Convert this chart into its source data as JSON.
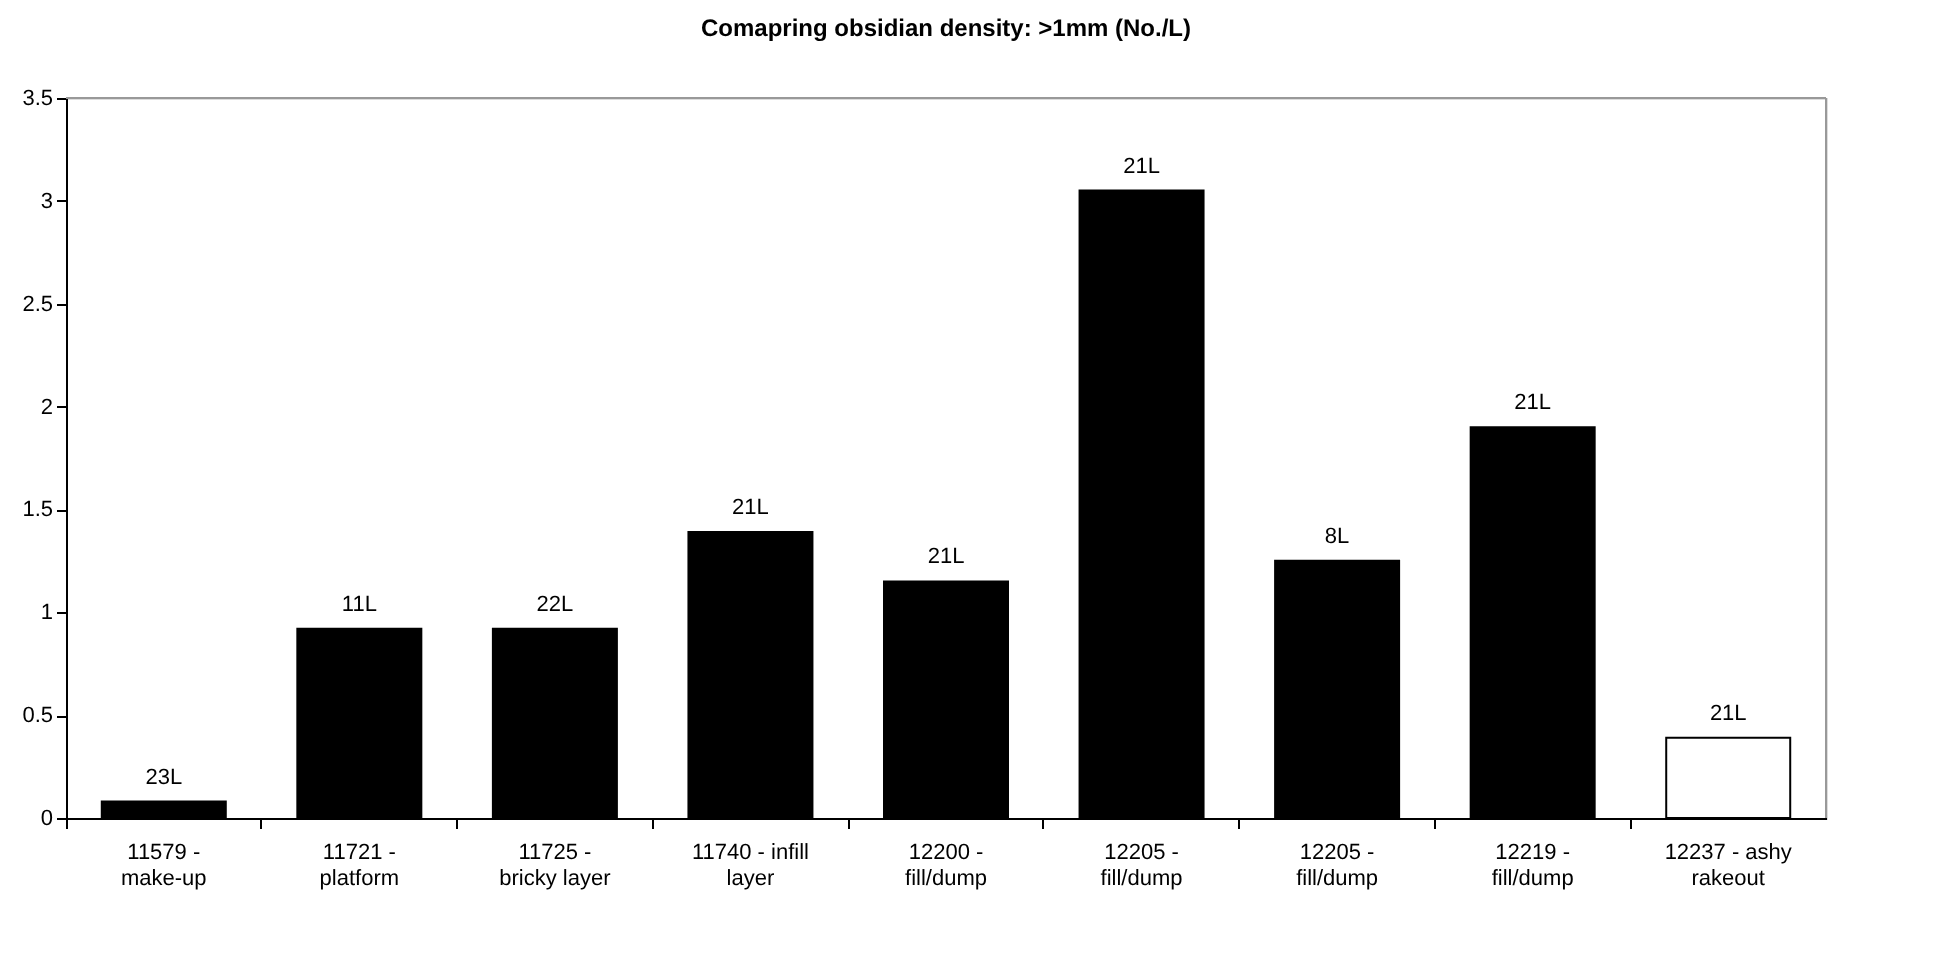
{
  "chart_data": {
    "type": "bar",
    "title": "Comapring obsidian density: >1mm (No./L)",
    "categories": [
      "11579 -\nmake-up",
      "11721 -\nplatform",
      "11725 -\nbricky layer",
      "11740 - infill\nlayer",
      "12200 -\nfill/dump",
      "12205 -\nfill/dump",
      "12205 -\nfill/dump",
      "12219 -\nfill/dump",
      "12237 - ashy\nrakeout"
    ],
    "values": [
      0.08,
      0.92,
      0.92,
      1.39,
      1.15,
      3.05,
      1.25,
      1.9,
      0.39
    ],
    "colors": [
      "#000000",
      "#000000",
      "#000000",
      "#000000",
      "#000000",
      "#000000",
      "#000000",
      "#000000",
      "#ffffff"
    ],
    "annotations": [
      {
        "text": "23L",
        "x": "11579 -\nmake-up",
        "y": 0.08
      },
      {
        "text": "11L",
        "x": "11721 -\nplatform",
        "y": 0.92
      },
      {
        "text": "22L",
        "x": "11725 -\nbricky layer",
        "y": 0.92
      },
      {
        "text": "21L",
        "x": "11740 - infill\nlayer",
        "y": 1.39
      },
      {
        "text": "21L",
        "x": "12200 -\nfill/dump",
        "y": 1.15
      },
      {
        "text": "21L",
        "x": "12205 -\nfill/dump",
        "y": 3.05
      },
      "8L",
      {
        "text": "21L",
        "x": "12219 -\nfill/dump",
        "y": 1.9
      },
      {
        "text": "21L",
        "x": "12237 - ashy\nrakeout",
        "y": 0.39
      }
    ],
    "ylim": [
      0,
      3.5
    ],
    "yticks": [
      0,
      0.5,
      1,
      1.5,
      2,
      2.5,
      3,
      3.5
    ],
    "grid": false
  }
}
